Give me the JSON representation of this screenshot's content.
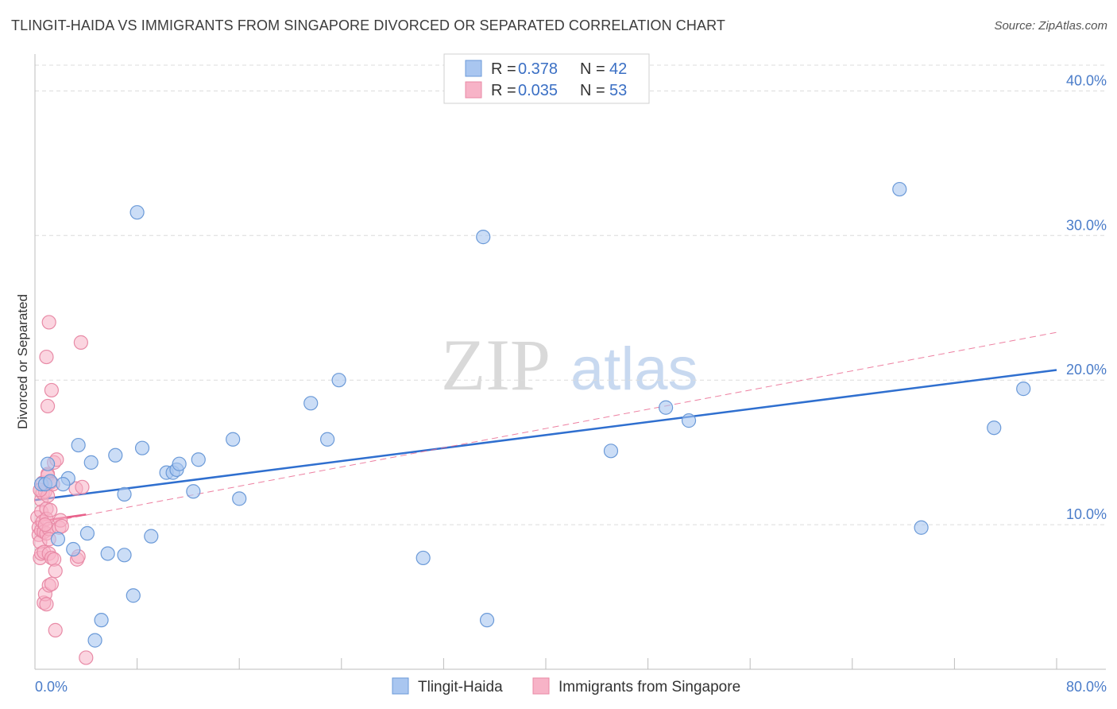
{
  "title": "TLINGIT-HAIDA VS IMMIGRANTS FROM SINGAPORE DIVORCED OR SEPARATED CORRELATION CHART",
  "source": "Source: ZipAtlas.com",
  "watermark": {
    "zip": "ZIP",
    "atlas": "atlas"
  },
  "colors": {
    "blue_fill": "#a9c6f0",
    "blue_stroke": "#6b9ad8",
    "blue_line": "#2f6fcf",
    "pink_fill": "#f7b3c7",
    "pink_stroke": "#e88aa6",
    "pink_line": "#e8608a",
    "tick_text": "#4a7cc9",
    "grid": "#dcdcdc"
  },
  "chart_data": {
    "type": "scatter",
    "title": "TLINGIT-HAIDA VS IMMIGRANTS FROM SINGAPORE DIVORCED OR SEPARATED CORRELATION CHART",
    "xlabel": "",
    "ylabel": "Divorced or Separated",
    "xlim": [
      0,
      80
    ],
    "ylim": [
      0,
      42
    ],
    "x_tick_labels": [
      "0.0%",
      "80.0%"
    ],
    "y_ticks": [
      10,
      20,
      30,
      40
    ],
    "y_tick_labels": [
      "10.0%",
      "20.0%",
      "30.0%",
      "40.0%"
    ],
    "legend": [
      {
        "r_label": "R =",
        "r_value": "0.378",
        "n_label": "N =",
        "n_value": "42"
      },
      {
        "r_label": "R =",
        "r_value": "0.035",
        "n_label": "N =",
        "n_value": "53"
      }
    ],
    "series": [
      {
        "name": "Tlingit-Haida",
        "trend": {
          "x": [
            0,
            80
          ],
          "y": [
            11.7,
            20.7
          ]
        },
        "points": [
          [
            0.5,
            12.8
          ],
          [
            0.8,
            12.8
          ],
          [
            1.0,
            14.2
          ],
          [
            1.2,
            13.0
          ],
          [
            1.8,
            9.0
          ],
          [
            2.6,
            13.2
          ],
          [
            2.2,
            12.8
          ],
          [
            3.0,
            8.3
          ],
          [
            3.4,
            15.5
          ],
          [
            4.1,
            9.4
          ],
          [
            4.4,
            14.3
          ],
          [
            5.2,
            3.4
          ],
          [
            4.7,
            2.0
          ],
          [
            5.7,
            8.0
          ],
          [
            6.3,
            14.8
          ],
          [
            7.0,
            12.1
          ],
          [
            7.0,
            7.9
          ],
          [
            7.7,
            5.1
          ],
          [
            8.0,
            31.6
          ],
          [
            8.4,
            15.3
          ],
          [
            9.1,
            9.2
          ],
          [
            10.3,
            13.6
          ],
          [
            10.8,
            13.6
          ],
          [
            11.1,
            13.8
          ],
          [
            11.3,
            14.2
          ],
          [
            12.4,
            12.3
          ],
          [
            12.8,
            14.5
          ],
          [
            15.5,
            15.9
          ],
          [
            16.0,
            11.8
          ],
          [
            21.6,
            18.4
          ],
          [
            22.9,
            15.9
          ],
          [
            23.8,
            20.0
          ],
          [
            30.4,
            7.7
          ],
          [
            35.1,
            29.9
          ],
          [
            35.4,
            3.4
          ],
          [
            45.1,
            15.1
          ],
          [
            49.4,
            18.1
          ],
          [
            51.2,
            17.2
          ],
          [
            67.7,
            33.2
          ],
          [
            69.4,
            9.8
          ],
          [
            75.1,
            16.7
          ],
          [
            77.4,
            19.4
          ]
        ]
      },
      {
        "name": "Immigrants from Singapore",
        "trend": {
          "x": [
            0,
            4
          ],
          "y": [
            10.2,
            10.7
          ]
        },
        "trend_dashed": {
          "x": [
            0,
            80
          ],
          "y": [
            10.0,
            23.3
          ]
        },
        "points": [
          [
            0.2,
            10.5
          ],
          [
            0.3,
            9.8
          ],
          [
            0.3,
            9.3
          ],
          [
            0.4,
            8.8
          ],
          [
            0.5,
            9.6
          ],
          [
            0.5,
            11.7
          ],
          [
            0.4,
            7.7
          ],
          [
            0.5,
            8.0
          ],
          [
            0.5,
            10.9
          ],
          [
            0.6,
            12.2
          ],
          [
            0.6,
            12.9
          ],
          [
            0.6,
            10.2
          ],
          [
            0.7,
            9.5
          ],
          [
            0.7,
            8.1
          ],
          [
            0.7,
            4.6
          ],
          [
            0.8,
            5.2
          ],
          [
            0.8,
            12.3
          ],
          [
            0.9,
            11.1
          ],
          [
            0.9,
            10.4
          ],
          [
            0.9,
            9.4
          ],
          [
            1.0,
            13.5
          ],
          [
            1.0,
            13.4
          ],
          [
            0.9,
            21.6
          ],
          [
            0.9,
            4.5
          ],
          [
            1.0,
            12.0
          ],
          [
            1.1,
            9.7
          ],
          [
            1.1,
            9.0
          ],
          [
            1.2,
            11.0
          ],
          [
            1.1,
            8.0
          ],
          [
            1.3,
            7.7
          ],
          [
            1.1,
            5.8
          ],
          [
            1.0,
            18.2
          ],
          [
            1.1,
            24.0
          ],
          [
            1.2,
            12.9
          ],
          [
            1.3,
            19.3
          ],
          [
            1.3,
            5.9
          ],
          [
            1.4,
            12.8
          ],
          [
            1.5,
            14.3
          ],
          [
            1.5,
            7.6
          ],
          [
            1.6,
            6.8
          ],
          [
            1.6,
            2.7
          ],
          [
            1.7,
            14.5
          ],
          [
            1.9,
            9.8
          ],
          [
            2.0,
            10.3
          ],
          [
            2.1,
            9.9
          ],
          [
            3.2,
            12.5
          ],
          [
            3.3,
            7.6
          ],
          [
            3.4,
            7.8
          ],
          [
            3.7,
            12.6
          ],
          [
            3.6,
            22.6
          ],
          [
            4.0,
            0.8
          ],
          [
            0.4,
            12.4
          ],
          [
            0.8,
            10.0
          ]
        ]
      }
    ]
  }
}
